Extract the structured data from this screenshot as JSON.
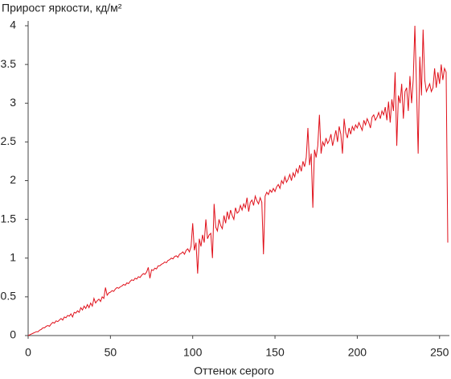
{
  "chart_data": {
    "type": "line",
    "title": "Прирост яркости, кд/м²",
    "x_label": "Оттенок серого",
    "x": [
      0,
      1,
      2,
      3,
      4,
      5,
      6,
      7,
      8,
      9,
      10,
      11,
      12,
      13,
      14,
      15,
      16,
      17,
      18,
      19,
      20,
      21,
      22,
      23,
      24,
      25,
      26,
      27,
      28,
      29,
      30,
      31,
      32,
      33,
      34,
      35,
      36,
      37,
      38,
      39,
      40,
      41,
      42,
      43,
      44,
      45,
      46,
      47,
      48,
      49,
      50,
      51,
      52,
      53,
      54,
      55,
      56,
      57,
      58,
      59,
      60,
      61,
      62,
      63,
      64,
      65,
      66,
      67,
      68,
      69,
      70,
      71,
      72,
      73,
      74,
      75,
      76,
      77,
      78,
      79,
      80,
      81,
      82,
      83,
      84,
      85,
      86,
      87,
      88,
      89,
      90,
      91,
      92,
      93,
      94,
      95,
      96,
      97,
      98,
      99,
      100,
      101,
      102,
      103,
      104,
      105,
      106,
      107,
      108,
      109,
      110,
      111,
      112,
      113,
      114,
      115,
      116,
      117,
      118,
      119,
      120,
      121,
      122,
      123,
      124,
      125,
      126,
      127,
      128,
      129,
      130,
      131,
      132,
      133,
      134,
      135,
      136,
      137,
      138,
      139,
      140,
      141,
      142,
      143,
      144,
      145,
      146,
      147,
      148,
      149,
      150,
      151,
      152,
      153,
      154,
      155,
      156,
      157,
      158,
      159,
      160,
      161,
      162,
      163,
      164,
      165,
      166,
      167,
      168,
      169,
      170,
      171,
      172,
      173,
      174,
      175,
      176,
      177,
      178,
      179,
      180,
      181,
      182,
      183,
      184,
      185,
      186,
      187,
      188,
      189,
      190,
      191,
      192,
      193,
      194,
      195,
      196,
      197,
      198,
      199,
      200,
      201,
      202,
      203,
      204,
      205,
      206,
      207,
      208,
      209,
      210,
      211,
      212,
      213,
      214,
      215,
      216,
      217,
      218,
      219,
      220,
      221,
      222,
      223,
      224,
      225,
      226,
      227,
      228,
      229,
      230,
      231,
      232,
      233,
      234,
      235,
      236,
      237,
      238,
      239,
      240,
      241,
      242,
      243,
      244,
      245,
      246,
      247,
      248,
      249,
      250,
      251,
      252,
      253,
      254,
      255
    ],
    "series": [
      {
        "color": "#e0101a",
        "values": [
          0,
          0.01,
          0.02,
          0.03,
          0.04,
          0.05,
          0.05,
          0.07,
          0.08,
          0.1,
          0.1,
          0.12,
          0.13,
          0.12,
          0.15,
          0.17,
          0.16,
          0.19,
          0.18,
          0.2,
          0.22,
          0.2,
          0.24,
          0.23,
          0.26,
          0.25,
          0.28,
          0.24,
          0.3,
          0.29,
          0.32,
          0.3,
          0.36,
          0.33,
          0.38,
          0.35,
          0.4,
          0.36,
          0.42,
          0.38,
          0.48,
          0.42,
          0.45,
          0.47,
          0.44,
          0.5,
          0.48,
          0.62,
          0.52,
          0.55,
          0.56,
          0.58,
          0.57,
          0.6,
          0.62,
          0.61,
          0.63,
          0.64,
          0.66,
          0.65,
          0.68,
          0.67,
          0.7,
          0.72,
          0.71,
          0.74,
          0.73,
          0.76,
          0.75,
          0.78,
          0.8,
          0.79,
          0.82,
          0.88,
          0.74,
          0.85,
          0.84,
          0.87,
          0.86,
          0.9,
          0.9,
          0.92,
          0.93,
          0.95,
          0.94,
          0.97,
          0.98,
          1.0,
          0.99,
          1.02,
          1.03,
          1.01,
          1.05,
          1.06,
          1.08,
          1.05,
          1.1,
          1.12,
          1.08,
          1.15,
          1.45,
          1.1,
          1.2,
          0.8,
          1.25,
          1.15,
          1.3,
          1.2,
          1.5,
          1.25,
          1.3,
          1.32,
          1.0,
          1.7,
          1.4,
          1.35,
          1.5,
          1.42,
          1.38,
          1.55,
          1.45,
          1.6,
          1.5,
          1.62,
          1.55,
          1.5,
          1.65,
          1.58,
          1.6,
          1.68,
          1.62,
          1.7,
          1.65,
          1.78,
          1.6,
          1.72,
          1.75,
          1.68,
          1.8,
          1.74,
          1.7,
          1.78,
          1.72,
          1.05,
          1.8,
          1.85,
          1.82,
          1.88,
          1.85,
          1.9,
          1.86,
          1.92,
          1.95,
          1.9,
          2.0,
          1.96,
          2.05,
          1.98,
          2.02,
          2.08,
          2.0,
          2.1,
          2.05,
          2.15,
          2.1,
          2.2,
          2.12,
          2.25,
          2.18,
          2.3,
          2.68,
          2.2,
          2.35,
          1.65,
          2.4,
          2.3,
          2.45,
          2.85,
          2.35,
          2.5,
          2.45,
          2.55,
          2.48,
          2.52,
          2.6,
          2.45,
          2.55,
          2.65,
          2.5,
          2.7,
          2.6,
          2.35,
          2.8,
          2.62,
          2.55,
          2.68,
          2.6,
          2.7,
          2.65,
          2.72,
          2.68,
          2.75,
          2.7,
          2.65,
          2.78,
          2.72,
          2.8,
          2.75,
          2.68,
          2.82,
          2.85,
          2.78,
          2.82,
          2.88,
          2.8,
          2.9,
          2.85,
          2.95,
          2.78,
          3.02,
          2.75,
          3.05,
          2.9,
          3.4,
          2.45,
          3.1,
          3.0,
          3.25,
          2.8,
          3.15,
          3.2,
          2.9,
          3.35,
          3.0,
          3.3,
          4.0,
          3.2,
          2.35,
          3.6,
          3.1,
          3.95,
          3.3,
          3.15,
          3.2,
          3.25,
          3.15,
          3.2,
          3.45,
          3.2,
          3.4,
          3.25,
          3.5,
          3.3,
          3.45,
          3.4,
          1.2
        ]
      }
    ],
    "xlim": [
      0,
      255
    ],
    "xticks": [
      0,
      50,
      100,
      150,
      200,
      250
    ],
    "ylim": [
      0,
      4
    ],
    "yticks": [
      0,
      0.5,
      1,
      1.5,
      2,
      2.5,
      3,
      3.5,
      4
    ]
  }
}
